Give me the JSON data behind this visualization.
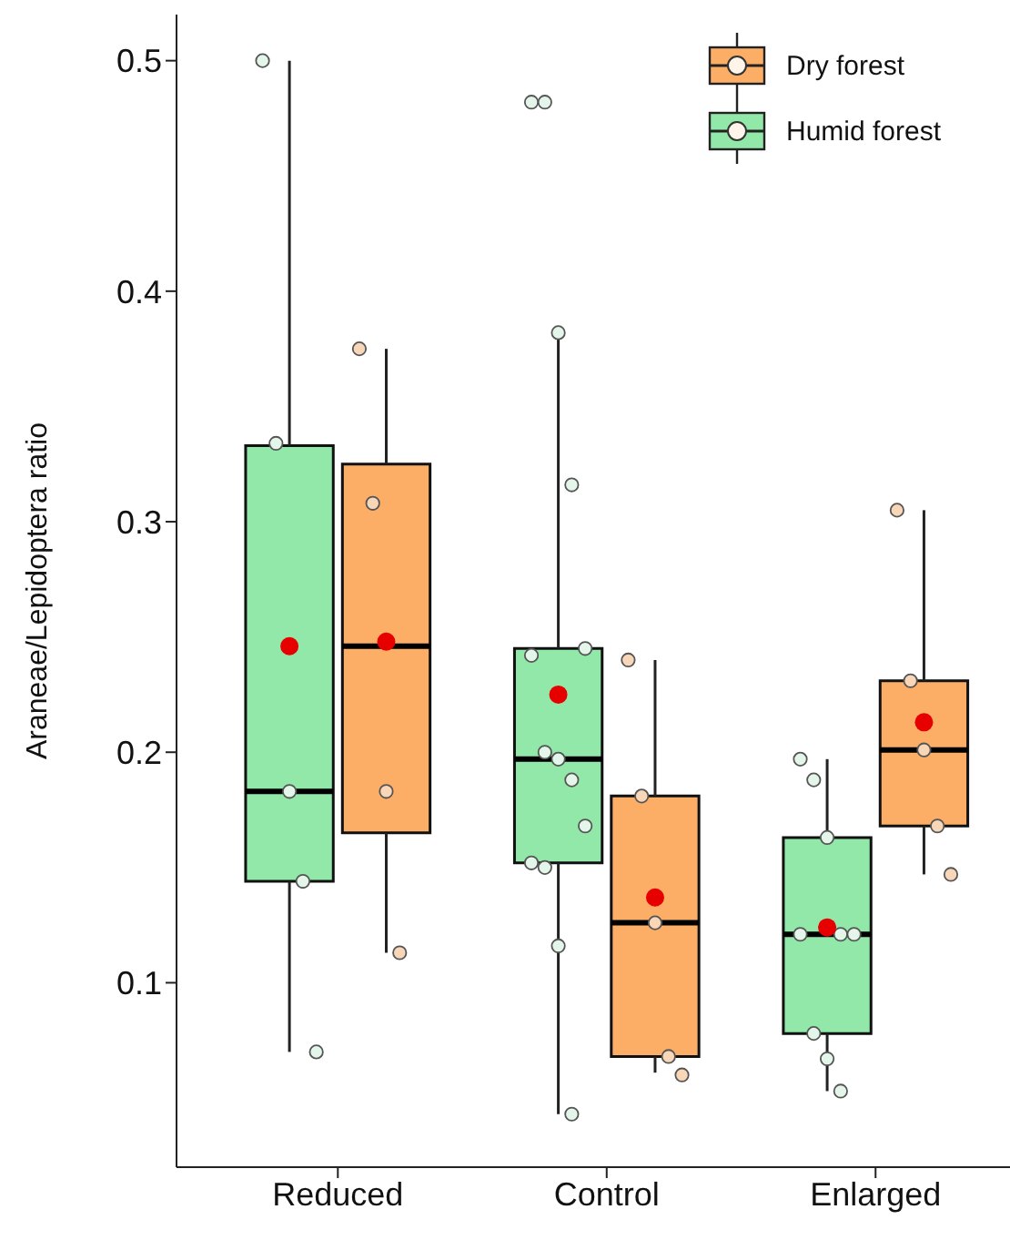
{
  "chart_data": {
    "type": "box",
    "ylabel": "Araneae/Lepidoptera ratio",
    "categories": [
      "Reduced",
      "Control",
      "Enlarged"
    ],
    "ylim": [
      0.02,
      0.52
    ],
    "yticks": [
      0.1,
      0.2,
      0.3,
      0.4,
      0.5
    ],
    "legend": "top right",
    "series": [
      {
        "name": "Humid forest",
        "color": "#92e8a8",
        "boxes": [
          {
            "low": 0.07,
            "q1": 0.144,
            "median": 0.183,
            "q3": 0.333,
            "high": 0.5,
            "mean": 0.246
          },
          {
            "low": 0.043,
            "q1": 0.152,
            "median": 0.197,
            "q3": 0.245,
            "high": 0.382,
            "mean": 0.225
          },
          {
            "low": 0.053,
            "q1": 0.078,
            "median": 0.121,
            "q3": 0.163,
            "high": 0.197,
            "mean": 0.124
          }
        ]
      },
      {
        "name": "Dry forest",
        "color": "#fcae66",
        "boxes": [
          {
            "low": 0.113,
            "q1": 0.165,
            "median": 0.246,
            "q3": 0.325,
            "high": 0.375,
            "mean": 0.248
          },
          {
            "low": 0.061,
            "q1": 0.068,
            "median": 0.126,
            "q3": 0.181,
            "high": 0.24,
            "mean": 0.137
          },
          {
            "low": 0.147,
            "q1": 0.168,
            "median": 0.201,
            "q3": 0.231,
            "high": 0.305,
            "mean": 0.213
          }
        ]
      },
      {
        "type": "scatter",
        "color": "#e4f6ea",
        "x": [
          "Reduced",
          "Reduced",
          "Reduced",
          "Reduced",
          "Reduced",
          "Control",
          "Control",
          "Control",
          "Control",
          "Control",
          "Control",
          "Control",
          "Control",
          "Control",
          "Control",
          "Control",
          "Control",
          "Control",
          "Control",
          "Enlarged",
          "Enlarged",
          "Enlarged",
          "Enlarged",
          "Enlarged",
          "Enlarged",
          "Enlarged",
          "Enlarged",
          "Enlarged"
        ],
        "values": [
          0.5,
          0.334,
          0.183,
          0.144,
          0.07,
          0.482,
          0.482,
          0.382,
          0.316,
          0.245,
          0.242,
          0.2,
          0.197,
          0.188,
          0.168,
          0.152,
          0.15,
          0.116,
          0.043,
          0.197,
          0.188,
          0.163,
          0.121,
          0.121,
          0.121,
          0.078,
          0.067,
          0.053
        ]
      },
      {
        "type": "scatter",
        "color": "#f8d6b8",
        "x": [
          "Reduced",
          "Reduced",
          "Reduced",
          "Reduced",
          "Control",
          "Control",
          "Control",
          "Control",
          "Control",
          "Enlarged",
          "Enlarged",
          "Enlarged",
          "Enlarged",
          "Enlarged"
        ],
        "values": [
          0.375,
          0.308,
          0.183,
          0.113,
          0.24,
          0.181,
          0.126,
          0.068,
          0.06,
          0.305,
          0.231,
          0.201,
          0.168,
          0.147
        ]
      }
    ]
  }
}
